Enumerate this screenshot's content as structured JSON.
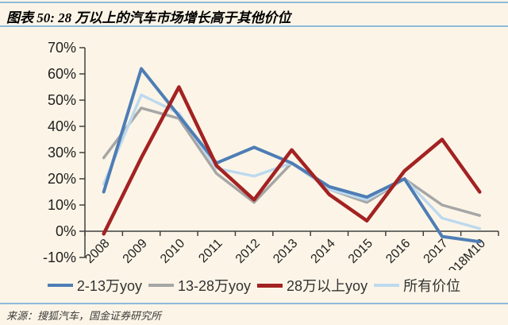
{
  "colors": {
    "background": "#FCF5E7",
    "rule": "#8FBADC",
    "axis": "#404040",
    "tick_text": "#1F1F1F",
    "legend_text": "#333333"
  },
  "header": {
    "title": "图表 50: 28 万以上的汽车市场增长高于其他价位"
  },
  "chart_data": {
    "type": "line",
    "title": "28 万以上的汽车市场增长高于其他价位",
    "categories": [
      "2008",
      "2009",
      "2010",
      "2011",
      "2012",
      "2013",
      "2014",
      "2015",
      "2016",
      "2017",
      "2018M10"
    ],
    "series": [
      {
        "name": "2-13万yoy",
        "color": "#4E7DB5",
        "width": 4,
        "values": [
          15,
          62,
          44,
          26,
          32,
          26,
          17,
          13,
          20,
          -2,
          -4
        ]
      },
      {
        "name": "13-28万yoy",
        "color": "#A6A6A6",
        "width": 3.5,
        "values": [
          28,
          47,
          43,
          22,
          11,
          26,
          16,
          11,
          20,
          10,
          6
        ]
      },
      {
        "name": "28万以上yoy",
        "color": "#A32222",
        "width": 4.5,
        "values": [
          -1,
          28,
          55,
          25,
          12,
          31,
          14,
          4,
          23,
          35,
          15
        ]
      },
      {
        "name": "所有价位",
        "color": "#BDD9EE",
        "width": 3.5,
        "values": [
          18,
          52,
          45,
          24,
          21,
          26,
          16,
          12,
          20,
          5,
          1
        ]
      }
    ],
    "draw_order": [
      1,
      3,
      0,
      2
    ],
    "ylim": [
      -10,
      70
    ],
    "ytick_step": 10,
    "ytick_labels": [
      "70%",
      "60%",
      "50%",
      "40%",
      "30%",
      "20%",
      "10%",
      "0%",
      "-10%"
    ],
    "xlabel": "",
    "ylabel": "",
    "grid": false,
    "legend_position": "bottom"
  },
  "footer": {
    "source": "来源：搜狐汽车，国金证券研究所"
  }
}
